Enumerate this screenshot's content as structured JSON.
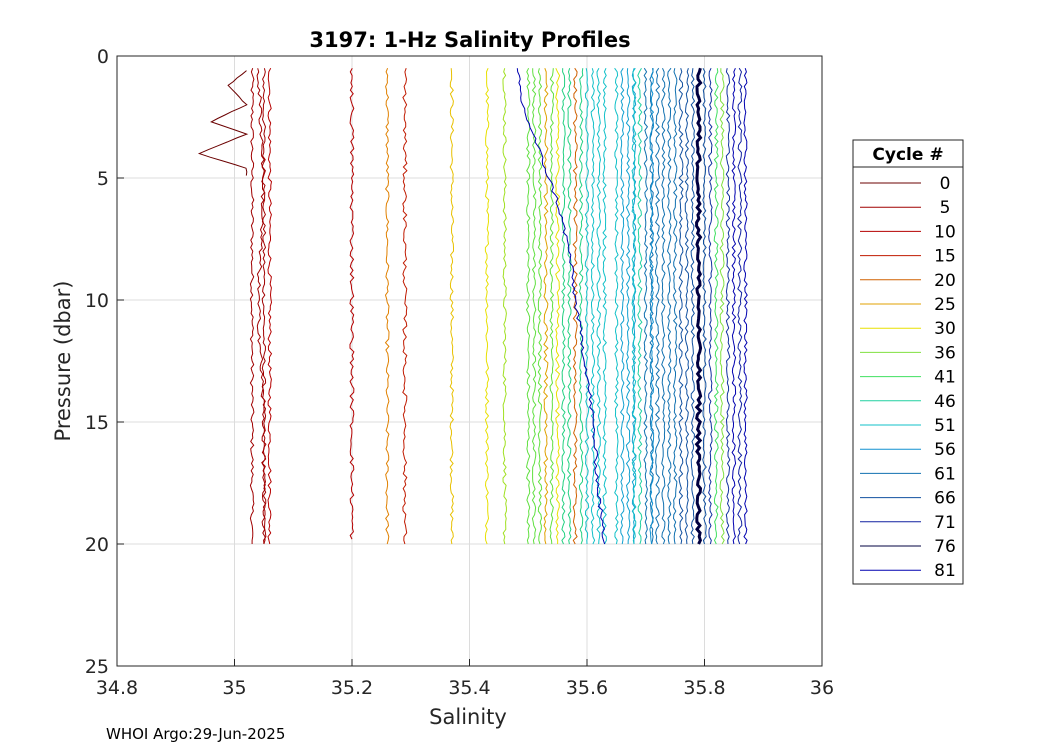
{
  "chart_data": {
    "type": "line",
    "title": "3197: 1-Hz Salinity Profiles",
    "xlabel": "Salinity",
    "ylabel": "Pressure (dbar)",
    "xlim": [
      34.8,
      36
    ],
    "ylim": [
      0,
      25
    ],
    "y_reversed": true,
    "x_ticks": [
      "34.8",
      "35",
      "35.2",
      "35.4",
      "35.6",
      "35.8",
      "36"
    ],
    "y_ticks": [
      "0",
      "5",
      "10",
      "15",
      "20",
      "25"
    ],
    "x_tick_values": [
      34.8,
      35.0,
      35.2,
      35.4,
      35.6,
      35.8,
      36.0
    ],
    "y_tick_values": [
      0,
      5,
      10,
      15,
      20,
      25
    ],
    "grid": true,
    "legend_title": "Cycle #",
    "legend_position": "outside-right",
    "series": [
      {
        "name": "0",
        "color": "#6b0000",
        "profile": [
          [
            35.02,
            0.6
          ],
          [
            34.99,
            1.2
          ],
          [
            35.02,
            2.0
          ],
          [
            34.96,
            2.7
          ],
          [
            35.02,
            3.2
          ],
          [
            34.94,
            4.0
          ],
          [
            35.02,
            4.6
          ],
          [
            35.02,
            4.9
          ]
        ]
      },
      {
        "name": "5",
        "color": "#a00000",
        "profile": [
          [
            35.04,
            0.5
          ],
          [
            35.05,
            5
          ],
          [
            35.04,
            10
          ],
          [
            35.05,
            15
          ],
          [
            35.05,
            20
          ]
        ]
      },
      {
        "name": "10",
        "color": "#b50000",
        "profile": [
          [
            35.2,
            0.5
          ],
          [
            35.2,
            5
          ],
          [
            35.2,
            10
          ],
          [
            35.2,
            15
          ],
          [
            35.2,
            19.8
          ]
        ]
      },
      {
        "name": "15",
        "color": "#c01a00",
        "profile": [
          [
            35.29,
            0.5
          ],
          [
            35.29,
            5
          ],
          [
            35.29,
            10
          ],
          [
            35.29,
            15
          ],
          [
            35.29,
            20
          ]
        ]
      },
      {
        "name": "20",
        "color": "#d06000",
        "profile": [
          [
            35.58,
            0.5
          ],
          [
            35.58,
            5
          ],
          [
            35.58,
            10
          ],
          [
            35.58,
            15
          ],
          [
            35.58,
            20
          ]
        ]
      },
      {
        "name": "25",
        "color": "#e0a000",
        "profile": [
          [
            35.53,
            0.5
          ],
          [
            35.53,
            5
          ],
          [
            35.53,
            10
          ],
          [
            35.53,
            15
          ],
          [
            35.53,
            20
          ]
        ]
      },
      {
        "name": "30",
        "color": "#e8e000",
        "profile": [
          [
            35.55,
            0.5
          ],
          [
            35.55,
            5
          ],
          [
            35.55,
            10
          ],
          [
            35.55,
            15
          ],
          [
            35.55,
            20
          ]
        ]
      },
      {
        "name": "36",
        "color": "#80e040",
        "profile": [
          [
            35.83,
            0.5
          ],
          [
            35.83,
            5
          ],
          [
            35.83,
            10
          ],
          [
            35.83,
            15
          ],
          [
            35.83,
            20
          ]
        ]
      },
      {
        "name": "41",
        "color": "#40e060",
        "profile": [
          [
            35.82,
            0.5
          ],
          [
            35.82,
            5
          ],
          [
            35.82,
            10
          ],
          [
            35.82,
            15
          ],
          [
            35.82,
            20
          ]
        ]
      },
      {
        "name": "46",
        "color": "#20d0a0",
        "profile": [
          [
            35.69,
            0.5
          ],
          [
            35.69,
            5
          ],
          [
            35.69,
            10
          ],
          [
            35.69,
            15
          ],
          [
            35.69,
            20
          ]
        ]
      },
      {
        "name": "51",
        "color": "#10c0c8",
        "profile": [
          [
            35.68,
            0.5
          ],
          [
            35.68,
            5
          ],
          [
            35.68,
            10
          ],
          [
            35.68,
            15
          ],
          [
            35.68,
            20
          ]
        ]
      },
      {
        "name": "56",
        "color": "#1090d0",
        "profile": [
          [
            35.71,
            0.5
          ],
          [
            35.71,
            5
          ],
          [
            35.71,
            10
          ],
          [
            35.71,
            15
          ],
          [
            35.71,
            20
          ]
        ]
      },
      {
        "name": "61",
        "color": "#1070b0",
        "profile": [
          [
            35.72,
            0.5
          ],
          [
            35.72,
            5
          ],
          [
            35.72,
            10
          ],
          [
            35.72,
            15
          ],
          [
            35.72,
            20
          ]
        ]
      },
      {
        "name": "66",
        "color": "#1050a0",
        "profile": [
          [
            35.76,
            0.5
          ],
          [
            35.76,
            5
          ],
          [
            35.76,
            10
          ],
          [
            35.76,
            15
          ],
          [
            35.76,
            20
          ]
        ]
      },
      {
        "name": "71",
        "color": "#1020a0",
        "profile": [
          [
            35.86,
            0.5
          ],
          [
            35.86,
            5
          ],
          [
            35.86,
            10
          ],
          [
            35.86,
            15
          ],
          [
            35.86,
            20
          ]
        ]
      },
      {
        "name": "76",
        "color": "#000040",
        "profile": [
          [
            35.79,
            0.5
          ],
          [
            35.79,
            5
          ],
          [
            35.79,
            10
          ],
          [
            35.79,
            15
          ],
          [
            35.79,
            20
          ]
        ]
      },
      {
        "name": "81",
        "color": "#0000b0",
        "profile": [
          [
            35.48,
            0.5
          ],
          [
            35.49,
            2
          ],
          [
            35.52,
            4
          ],
          [
            35.55,
            6
          ],
          [
            35.57,
            8
          ],
          [
            35.58,
            10
          ],
          [
            35.6,
            13
          ],
          [
            35.61,
            15
          ],
          [
            35.62,
            18
          ],
          [
            35.63,
            20
          ]
        ]
      }
    ],
    "background_profiles": {
      "color_order": [
        "#a00000",
        "#b50000",
        "#c01a00",
        "#d03000",
        "#d06000",
        "#e08000",
        "#e0a000",
        "#e8c000",
        "#e8e000",
        "#a0e020",
        "#60e040",
        "#20d080",
        "#10c0c8",
        "#10a0d0",
        "#1070b0",
        "#1050a0",
        "#1030a0",
        "#0000b0"
      ],
      "x_positions": [
        35.03,
        35.05,
        35.06,
        35.37,
        35.26,
        35.43,
        35.46,
        35.5,
        35.51,
        35.52,
        35.54,
        35.56,
        35.57,
        35.59,
        35.6,
        35.61,
        35.62,
        35.63,
        35.65,
        35.66,
        35.67,
        35.68,
        35.7,
        35.71,
        35.73,
        35.74,
        35.75,
        35.77,
        35.78,
        35.8,
        35.81,
        35.84,
        35.85,
        35.87
      ]
    }
  },
  "footer": {
    "text": "WHOI Argo:29-Jun-2025"
  }
}
